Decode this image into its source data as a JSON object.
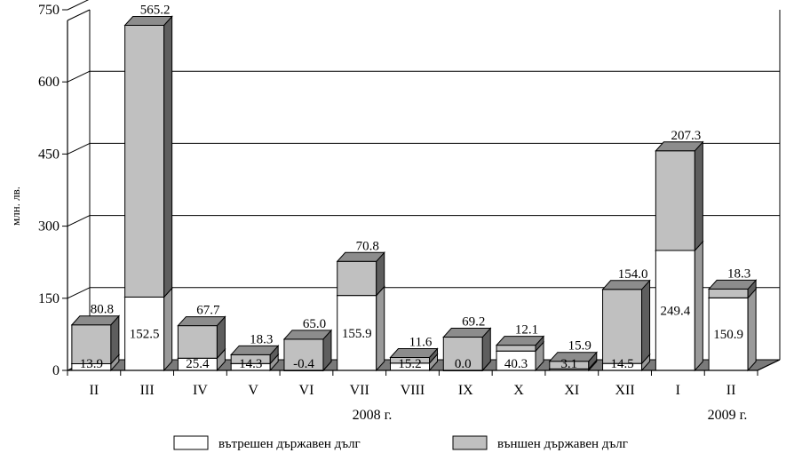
{
  "chart_data": {
    "type": "bar",
    "stacked": true,
    "style": "3d",
    "ylabel": "млн. лв.",
    "ylim": [
      0,
      750
    ],
    "yticks": [
      0,
      150,
      300,
      450,
      600,
      750
    ],
    "grid": true,
    "categories": [
      "II",
      "III",
      "IV",
      "V",
      "VI",
      "VII",
      "VIII",
      "IX",
      "X",
      "XI",
      "XII",
      "I",
      "II"
    ],
    "year_labels": [
      "2008 г.",
      "2009 г."
    ],
    "series": [
      {
        "name": "вътрешен държавен дълг",
        "color": "#ffffff",
        "values": [
          13.9,
          152.5,
          25.4,
          14.3,
          -0.4,
          155.9,
          15.2,
          0.0,
          40.3,
          3.1,
          14.5,
          249.4,
          150.9
        ],
        "labels": [
          "13.9",
          "152.5",
          "25.4",
          "14.3",
          "-0.4",
          "155.9",
          "15.2",
          "0.0",
          "40.3",
          "3.1",
          "14.5",
          "249.4",
          "150.9"
        ]
      },
      {
        "name": "външен държавен дълг",
        "color": "#c0c0c0",
        "values": [
          80.8,
          565.2,
          67.7,
          18.3,
          65.0,
          70.8,
          11.6,
          69.2,
          12.1,
          15.9,
          154.0,
          207.3,
          18.3
        ],
        "labels": [
          "80.8",
          "565.2",
          "67.7",
          "18.3",
          "65.0",
          "70.8",
          "11.6",
          "69.2",
          "12.1",
          "15.9",
          "154.0",
          "207.3",
          "18.3"
        ]
      }
    ],
    "legend_position": "bottom"
  }
}
